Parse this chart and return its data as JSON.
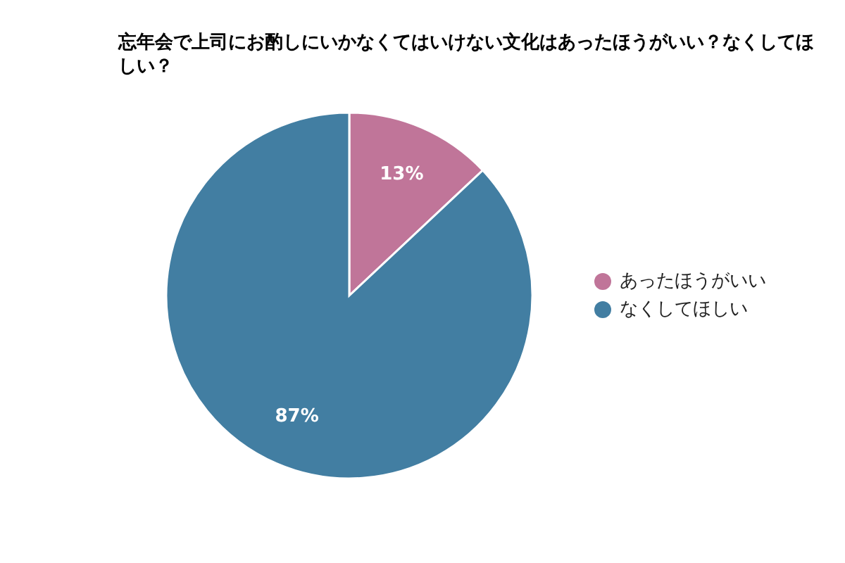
{
  "chart_data": {
    "type": "pie",
    "title": "忘年会で上司にお酌しにいかなくてはいけない文化はあったほうがいい？なくしてほしい？",
    "categories": [
      "あったほうがいい",
      "なくしてほしい"
    ],
    "values": [
      13,
      87
    ],
    "colors": [
      "#c07599",
      "#427ea2"
    ],
    "value_labels": [
      "13%",
      "87%"
    ],
    "legend": "right"
  }
}
